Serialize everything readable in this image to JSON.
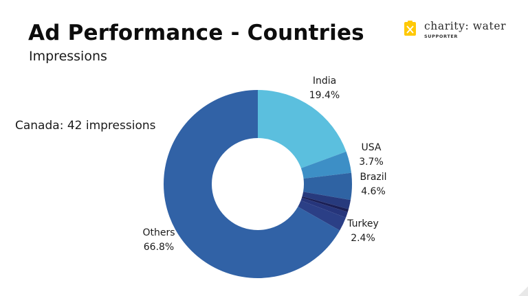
{
  "header": {
    "title": "Ad Performance - Countries",
    "subtitle": "Impressions"
  },
  "annotation": "Canada: 42 impressions",
  "logo": {
    "name": "charity: water",
    "tagline": "SUPPORTER",
    "icon": "jerrycan-icon",
    "color": "#ffc907"
  },
  "chart_data": {
    "type": "pie",
    "donut": true,
    "title": "Ad Performance - Countries",
    "subtitle": "Impressions",
    "slices": [
      {
        "label": "India",
        "value": 19.4,
        "display": "19.4%",
        "color": "#5bbfde"
      },
      {
        "label": "USA",
        "value": 3.7,
        "display": "3.7%",
        "color": "#3d8fc6"
      },
      {
        "label": "Brazil",
        "value": 4.6,
        "display": "4.6%",
        "color": "#2f63a3"
      },
      {
        "label": "",
        "value": 1.6,
        "display": "",
        "color": "#273a7d"
      },
      {
        "label": "",
        "value": 0.5,
        "display": "",
        "color": "#1a1f55"
      },
      {
        "label": "",
        "value": 1.0,
        "display": "",
        "color": "#26357b"
      },
      {
        "label": "Turkey",
        "value": 2.4,
        "display": "2.4%",
        "color": "#2b3f86"
      },
      {
        "label": "Others",
        "value": 66.8,
        "display": "66.8%",
        "color": "#3162a6"
      }
    ]
  }
}
